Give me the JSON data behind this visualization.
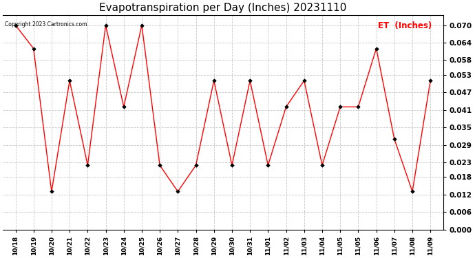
{
  "title": "Evapotranspiration per Day (Inches) 20231110",
  "copyright": "Copyright 2023 Cartronics.com",
  "legend_label": "ET  (Inches)",
  "x_tick_labels": [
    "10/18",
    "10/19",
    "10/20",
    "10/21",
    "10/22",
    "10/23",
    "10/24",
    "10/25",
    "10/26",
    "10/27",
    "10/28",
    "10/29",
    "10/30",
    "10/31",
    "11/01",
    "11/02",
    "11/03",
    "11/04",
    "11/05",
    "11/05",
    "11/06",
    "11/07",
    "11/08",
    "11/09"
  ],
  "values": [
    0.07,
    0.062,
    0.013,
    0.051,
    0.022,
    0.07,
    0.042,
    0.07,
    0.022,
    0.013,
    0.022,
    0.051,
    0.022,
    0.051,
    0.022,
    0.042,
    0.051,
    0.022,
    0.042,
    0.042,
    0.062,
    0.031,
    0.013,
    0.051
  ],
  "line_color": "#ff0000",
  "marker_color": "#000000",
  "background_color": "#ffffff",
  "grid_color": "#c8c8c8",
  "title_fontsize": 11,
  "legend_color": "#ff0000",
  "ylim_min": 0.0,
  "ylim_max": 0.0735,
  "yticks": [
    0.0,
    0.006,
    0.012,
    0.018,
    0.023,
    0.029,
    0.035,
    0.041,
    0.047,
    0.053,
    0.058,
    0.064,
    0.07
  ]
}
